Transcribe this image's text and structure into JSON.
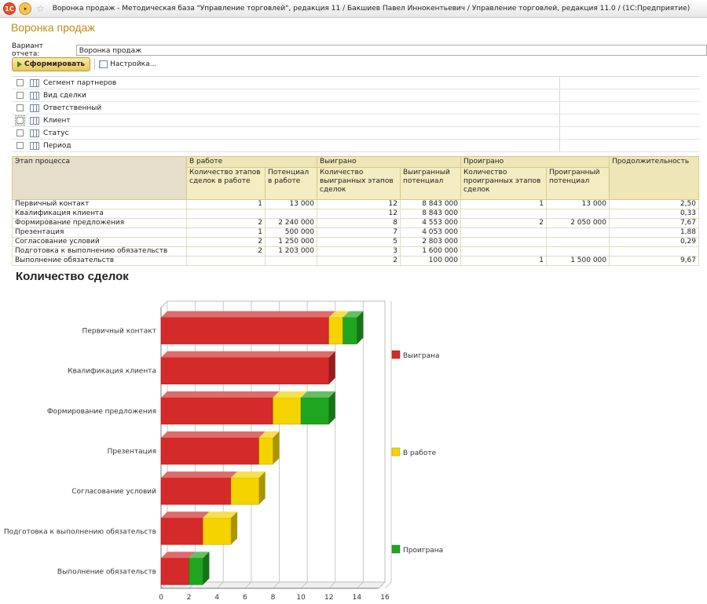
{
  "window": {
    "title": "Воронка продаж - Методическая база \"Управление торговлей\", редакция 11 / Бакшиев Павел Иннокентьевич / Управление торговлей, редакция 11.0 / (1С:Предприятие)",
    "logo": "1С"
  },
  "page": {
    "title": "Воронка продаж",
    "variant_label": "Вариант отчета:",
    "variant_value": "Воронка продаж"
  },
  "toolbar": {
    "generate_label": "Сформировать",
    "settings_label": "Настройка..."
  },
  "filters": [
    {
      "label": "Сегмент партнеров"
    },
    {
      "label": "Вид сделки"
    },
    {
      "label": "Ответственный"
    },
    {
      "label": "Клиент"
    },
    {
      "label": "Статус"
    },
    {
      "label": "Период"
    }
  ],
  "table": {
    "stage_header": "Этап процесса",
    "group_in_work": "В работе",
    "group_won": "Выиграно",
    "group_lost": "Проиграно",
    "duration_header": "Продолжительность",
    "col_count_in_work": "Количество этапов сделок в работе",
    "col_potential_in_work": "Потенциал в работе",
    "col_count_won": "Количество выигранных этапов сделок",
    "col_won_potential": "Выигранный потенциал",
    "col_count_lost": "Количество проигранных этапов сделок",
    "col_lost_potential": "Проигранный потенциал",
    "rows": [
      {
        "stage": "Первичный контакт",
        "in_work_count": "1",
        "in_work_potential": "13 000",
        "won_count": "12",
        "won_potential": "8 843 000",
        "lost_count": "1",
        "lost_potential": "13 000",
        "duration": "2,50"
      },
      {
        "stage": "Квалификация клиента",
        "in_work_count": "",
        "in_work_potential": "",
        "won_count": "12",
        "won_potential": "8 843 000",
        "lost_count": "",
        "lost_potential": "",
        "duration": "0,33"
      },
      {
        "stage": "Формирование предложения",
        "in_work_count": "2",
        "in_work_potential": "2 240 000",
        "won_count": "8",
        "won_potential": "4 553 000",
        "lost_count": "2",
        "lost_potential": "2 050 000",
        "duration": "7,67"
      },
      {
        "stage": "Презентация",
        "in_work_count": "1",
        "in_work_potential": "500 000",
        "won_count": "7",
        "won_potential": "4 053 000",
        "lost_count": "",
        "lost_potential": "",
        "duration": "1,88"
      },
      {
        "stage": "Согласование условий",
        "in_work_count": "2",
        "in_work_potential": "1 250 000",
        "won_count": "5",
        "won_potential": "2 803 000",
        "lost_count": "",
        "lost_potential": "",
        "duration": "0,29"
      },
      {
        "stage": "Подготовка к выполнению обязательств",
        "in_work_count": "2",
        "in_work_potential": "1 203 000",
        "won_count": "3",
        "won_potential": "1 600 000",
        "lost_count": "",
        "lost_potential": "",
        "duration": ""
      },
      {
        "stage": "Выполнение обязательств",
        "in_work_count": "",
        "in_work_potential": "",
        "won_count": "2",
        "won_potential": "100 000",
        "lost_count": "1",
        "lost_potential": "1 500 000",
        "duration": "9,67"
      }
    ]
  },
  "chart_data": {
    "type": "bar",
    "orientation": "horizontal",
    "stacked": true,
    "title": "Количество сделок",
    "categories": [
      "Первичный контакт",
      "Квалификация клиента",
      "Формирование предложения",
      "Презентация",
      "Согласование условий",
      "Подготовка к выполнению обязательств",
      "Выполнение обязательств"
    ],
    "series": [
      {
        "name": "Выиграна",
        "color": "#d42a2a",
        "values": [
          12,
          12,
          8,
          7,
          5,
          3,
          2
        ]
      },
      {
        "name": "В работе",
        "color": "#f5d300",
        "values": [
          1,
          0,
          2,
          1,
          2,
          2,
          0
        ]
      },
      {
        "name": "Проиграна",
        "color": "#1fa51f",
        "values": [
          1,
          0,
          2,
          0,
          0,
          0,
          1
        ]
      }
    ],
    "xlim": [
      0,
      16
    ],
    "xticks": [
      0,
      2,
      4,
      6,
      8,
      10,
      12,
      14,
      16
    ],
    "grid": true,
    "legend": "right"
  }
}
